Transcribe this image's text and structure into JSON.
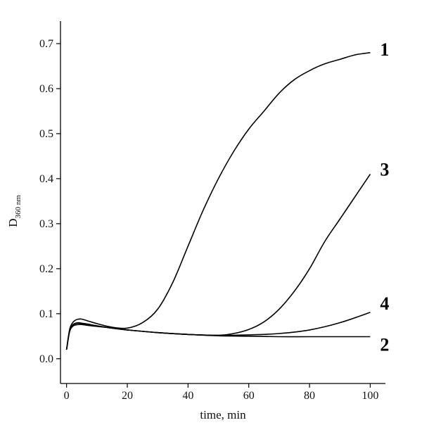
{
  "chart_data": {
    "type": "line",
    "xlabel": "time, min",
    "ylabel": "D",
    "ylabel_subscript": "360 nm",
    "xlim": [
      -2,
      105
    ],
    "ylim": [
      -0.055,
      0.75
    ],
    "xticks": [
      0,
      20,
      40,
      60,
      80,
      100
    ],
    "xtick_labels": [
      "0",
      "20",
      "40",
      "60",
      "80",
      "100"
    ],
    "yticks": [
      0.0,
      0.1,
      0.2,
      0.3,
      0.4,
      0.5,
      0.6,
      0.7
    ],
    "ytick_labels": [
      "0.0",
      "0.1",
      "0.2",
      "0.3",
      "0.4",
      "0.5",
      "0.6",
      "0.7"
    ],
    "grid": false,
    "legend": "none",
    "series": [
      {
        "name": "1",
        "x": [
          0,
          1,
          2,
          3,
          4,
          5,
          7,
          10,
          15,
          20,
          25,
          30,
          35,
          40,
          45,
          50,
          55,
          60,
          65,
          70,
          75,
          80,
          85,
          90,
          95,
          100
        ],
        "values": [
          0.02,
          0.065,
          0.08,
          0.086,
          0.088,
          0.088,
          0.084,
          0.078,
          0.07,
          0.068,
          0.08,
          0.11,
          0.17,
          0.25,
          0.33,
          0.4,
          0.46,
          0.51,
          0.55,
          0.59,
          0.62,
          0.64,
          0.655,
          0.665,
          0.675,
          0.68
        ]
      },
      {
        "name": "2",
        "x": [
          0,
          1,
          2,
          3,
          4,
          5,
          7,
          10,
          15,
          20,
          30,
          40,
          50,
          60,
          70,
          80,
          90,
          100
        ],
        "values": [
          0.02,
          0.06,
          0.072,
          0.075,
          0.076,
          0.076,
          0.074,
          0.072,
          0.068,
          0.064,
          0.058,
          0.054,
          0.051,
          0.05,
          0.049,
          0.049,
          0.049,
          0.049
        ]
      },
      {
        "name": "3",
        "x": [
          0,
          1,
          2,
          3,
          4,
          5,
          7,
          10,
          15,
          20,
          30,
          40,
          50,
          55,
          60,
          65,
          70,
          75,
          80,
          85,
          90,
          95,
          100
        ],
        "values": [
          0.02,
          0.062,
          0.075,
          0.079,
          0.08,
          0.079,
          0.077,
          0.073,
          0.068,
          0.064,
          0.058,
          0.054,
          0.052,
          0.056,
          0.065,
          0.082,
          0.11,
          0.15,
          0.2,
          0.26,
          0.31,
          0.36,
          0.41
        ]
      },
      {
        "name": "4",
        "x": [
          0,
          1,
          2,
          3,
          4,
          5,
          7,
          10,
          15,
          20,
          30,
          40,
          50,
          60,
          70,
          80,
          90,
          100
        ],
        "values": [
          0.02,
          0.062,
          0.074,
          0.078,
          0.079,
          0.078,
          0.076,
          0.073,
          0.068,
          0.064,
          0.058,
          0.054,
          0.052,
          0.053,
          0.056,
          0.064,
          0.08,
          0.103
        ]
      }
    ]
  }
}
